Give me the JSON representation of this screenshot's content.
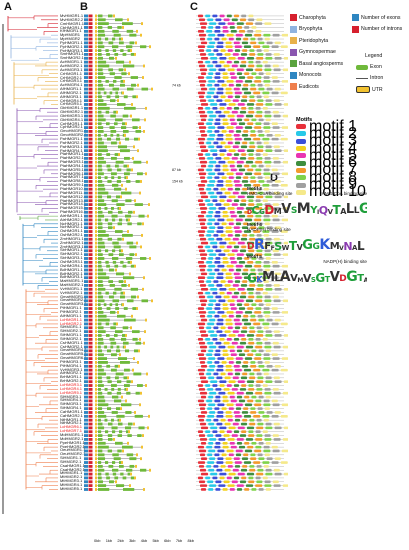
{
  "panels": {
    "a": "A",
    "b": "B",
    "c": "C",
    "d": "D"
  },
  "legend": {
    "groups": [
      {
        "label": "Charophyta",
        "color": "#d6202e"
      },
      {
        "label": "Bryophyta",
        "color": "#8fb3e0"
      },
      {
        "label": "Pteridophyta",
        "color": "#e8b14a"
      },
      {
        "label": "Gymnospermae",
        "color": "#8a56b0"
      },
      {
        "label": "Basal angiosperms",
        "color": "#5aa33f"
      },
      {
        "label": "Monocots",
        "color": "#2e86c1"
      },
      {
        "label": "Eudicots",
        "color": "#ef7f4d"
      }
    ],
    "counts": [
      {
        "label": "Number of exons",
        "color": "#2e86c1"
      },
      {
        "label": "Number of introns",
        "color": "#d6202e"
      }
    ],
    "legend_title": "Legend",
    "structure": [
      {
        "label": "Exon",
        "color": "#6fb93b"
      },
      {
        "label": "Intron",
        "color": "#555555"
      },
      {
        "label": "UTR",
        "color": "#f2c230"
      }
    ]
  },
  "motif_legend": {
    "title": "Motifs",
    "items": [
      {
        "label": "motif 1",
        "color": "#e8303a"
      },
      {
        "label": "motif 2",
        "color": "#27c9e8"
      },
      {
        "label": "motif 3",
        "color": "#3b4fd8"
      },
      {
        "label": "motif 4",
        "color": "#f3d21f"
      },
      {
        "label": "motif 5",
        "color": "#e934b2"
      },
      {
        "label": "motif 6",
        "color": "#3e8e3e"
      },
      {
        "label": "motif 7",
        "color": "#f39a2c"
      },
      {
        "label": "motif 8",
        "color": "#7fd34b"
      },
      {
        "label": "motif 9",
        "color": "#a0a0a0"
      },
      {
        "label": "motif 10",
        "color": "#f5e98a"
      }
    ]
  },
  "logos": [
    {
      "title": "Motif 3",
      "site1": "HMG-CoA binding site",
      "site2": "HMG-CoA binding site",
      "seq": "DCGDMVSMYIQVTALLGGIQKNATTLGLSMTVRGPSAL"
    },
    {
      "title": "Motif 4",
      "site1": "NADP(H) binding site",
      "site2": "",
      "seq": "DRFFSWTVGGKMVNAL"
    },
    {
      "title": "Motif 5",
      "site1": "",
      "site2": "NADP(H) binding site",
      "seq": "GKMLAVMVSGTVDGTAAMGVNAGVHSAGGTLLAVGKAGAS"
    }
  ],
  "axis": {
    "ticks": [
      "0kb",
      "1kb",
      "2kb",
      "3kb",
      "4kb",
      "5kb",
      "6kb",
      "7kb",
      "8kb"
    ]
  },
  "structure_notes": [
    "74 kb",
    "87 kb",
    "154 kb"
  ],
  "genes": [
    {
      "name": "MvHMGR1.1",
      "hl": false
    },
    {
      "name": "MvHMGR2.2",
      "hl": false
    },
    {
      "name": "CmHMGR1.1",
      "hl": false
    },
    {
      "name": "CbHMGR1.1",
      "hl": false
    },
    {
      "name": "KfHMGR1.1",
      "hl": false
    },
    {
      "name": "MpHMGR1",
      "hl": false
    },
    {
      "name": "MpHMGR2",
      "hl": false
    },
    {
      "name": "PpHMGR1.1",
      "hl": false
    },
    {
      "name": "PpHMGR2.1",
      "hl": false
    },
    {
      "name": "PpHMGR3.1",
      "hl": false
    },
    {
      "name": "SmHMGR1.1",
      "hl": false
    },
    {
      "name": "SmHMGR2.1",
      "hl": false
    },
    {
      "name": "AcHMGR1.1",
      "hl": false
    },
    {
      "name": "AcHMGR2.1",
      "hl": false
    },
    {
      "name": "AcHMGR3.1",
      "hl": false
    },
    {
      "name": "CrHMGR1.1",
      "hl": false
    },
    {
      "name": "CrHMGR2.1",
      "hl": false
    },
    {
      "name": "CrHMGR3.1",
      "hl": false
    },
    {
      "name": "AcHMGR4.1",
      "hl": false
    },
    {
      "name": "AfHMGR1.1",
      "hl": false
    },
    {
      "name": "AfHMGR2.1",
      "hl": false
    },
    {
      "name": "AfHMGR3.1",
      "hl": false
    },
    {
      "name": "CrHMGR4.1",
      "hl": false
    },
    {
      "name": "CrHMGR5.1",
      "hl": false
    },
    {
      "name": "GbHMGR1.1",
      "hl": false
    },
    {
      "name": "GbHMGR2.1",
      "hl": false
    },
    {
      "name": "GbHMGR3.1",
      "hl": false
    },
    {
      "name": "GbHMGR4.1",
      "hl": false
    },
    {
      "name": "CpHMGR1.1",
      "hl": false
    },
    {
      "name": "CpHMGR2.1",
      "hl": false
    },
    {
      "name": "GmoHMGR1.1",
      "hl": false
    },
    {
      "name": "GmoHMGR2.1",
      "hl": false
    },
    {
      "name": "PaHMGR1.1",
      "hl": false
    },
    {
      "name": "PaHMGR2.1",
      "hl": false
    },
    {
      "name": "PaHMGR3.1",
      "hl": false
    },
    {
      "name": "PaHMGR4.1",
      "hl": false
    },
    {
      "name": "PtaHMGR1.1",
      "hl": false
    },
    {
      "name": "PtaHMGR2.1",
      "hl": false
    },
    {
      "name": "PtaHMGR3.1",
      "hl": false
    },
    {
      "name": "PtaHMGR4.1",
      "hl": false
    },
    {
      "name": "PtaHMGR5.1",
      "hl": false
    },
    {
      "name": "PtaHMGR6.1",
      "hl": false
    },
    {
      "name": "PtaHMGR7.1",
      "hl": false
    },
    {
      "name": "PtaHMGR8.1",
      "hl": false
    },
    {
      "name": "PtaHMGR9.1",
      "hl": false
    },
    {
      "name": "PtaHMGR10.1",
      "hl": false
    },
    {
      "name": "PtaHMGR11.1",
      "hl": false
    },
    {
      "name": "PtaHMGR12.1",
      "hl": false
    },
    {
      "name": "PtaHMGR13.1",
      "hl": false
    },
    {
      "name": "PtaHMGR14.1",
      "hl": false
    },
    {
      "name": "PtaHMGR15.1",
      "hl": false
    },
    {
      "name": "PtaHMGR16.1",
      "hl": false
    },
    {
      "name": "AtrHMGR1.1",
      "hl": false
    },
    {
      "name": "AtrHMGR2.1",
      "hl": false
    },
    {
      "name": "NcHMGR1.1",
      "hl": false
    },
    {
      "name": "NcHMGR2.1",
      "hl": false
    },
    {
      "name": "OsHMGR1.1",
      "hl": false
    },
    {
      "name": "OsHMGR2.1",
      "hl": false
    },
    {
      "name": "ZmHMGR1.1",
      "hl": false
    },
    {
      "name": "ZmHMGR2.1",
      "hl": false
    },
    {
      "name": "ZmHMGR3.1",
      "hl": false
    },
    {
      "name": "SbHMGR1.1",
      "hl": false
    },
    {
      "name": "SbHMGR2.1",
      "hl": false
    },
    {
      "name": "SbHMGR3.1",
      "hl": false
    },
    {
      "name": "OsHMGR3.1",
      "hl": false
    },
    {
      "name": "OsHMGR4.1",
      "hl": false
    },
    {
      "name": "BdHMGR1.1",
      "hl": false
    },
    {
      "name": "BdHMGR2.1",
      "hl": false
    },
    {
      "name": "BdHMGR3.1",
      "hl": false
    },
    {
      "name": "MaHMGR1.1",
      "hl": false
    },
    {
      "name": "MaHMGR2.1",
      "hl": false
    },
    {
      "name": "VvHMGR1.1",
      "hl": false
    },
    {
      "name": "VvHMGR2.1",
      "hl": false
    },
    {
      "name": "GmaHMGR1.1",
      "hl": false
    },
    {
      "name": "GmaHMGR2.1",
      "hl": false
    },
    {
      "name": "GmaHMGR3.1",
      "hl": false
    },
    {
      "name": "PtHMGR1.1",
      "hl": false
    },
    {
      "name": "PtHMGR2.1",
      "hl": false
    },
    {
      "name": "AtHMGR1.1",
      "hl": false
    },
    {
      "name": "LcHMGR1.1",
      "hl": true
    },
    {
      "name": "LcHMGR2.1",
      "hl": true
    },
    {
      "name": "SlHMGR1.1",
      "hl": false
    },
    {
      "name": "SlHMGR2.1",
      "hl": false
    },
    {
      "name": "StHMGR1.1",
      "hl": false
    },
    {
      "name": "StHMGR2.1",
      "hl": false
    },
    {
      "name": "CsHMGR1.1",
      "hl": false
    },
    {
      "name": "CsHMGR2.1",
      "hl": false
    },
    {
      "name": "GmaHMGR4.1",
      "hl": false
    },
    {
      "name": "GmaHMGR5.1",
      "hl": false
    },
    {
      "name": "GmaHMGR6.1",
      "hl": false
    },
    {
      "name": "PtHMGR3.1",
      "hl": false
    },
    {
      "name": "PtHMGR4.1",
      "hl": false
    },
    {
      "name": "VvHMGR3.1",
      "hl": false
    },
    {
      "name": "AtHMGR2.1",
      "hl": false
    },
    {
      "name": "BrHMGR1.1",
      "hl": false
    },
    {
      "name": "BrHMGR2.1",
      "hl": false
    },
    {
      "name": "LcHMGR3.1",
      "hl": true
    },
    {
      "name": "LcHMGR4.1",
      "hl": true
    },
    {
      "name": "LcHMGR5.1",
      "hl": true
    },
    {
      "name": "SlHMGR3.1",
      "hl": false
    },
    {
      "name": "SlHMGR4.1",
      "hl": false
    },
    {
      "name": "StHMGR3.1",
      "hl": false
    },
    {
      "name": "StHMGR4.1",
      "hl": false
    },
    {
      "name": "CaHMGR1.1",
      "hl": false
    },
    {
      "name": "CaHMGR2.1",
      "hl": false
    },
    {
      "name": "NtHMGR1.1",
      "hl": false
    },
    {
      "name": "NtHMGR2.1",
      "hl": false
    },
    {
      "name": "LcHMGR6.1",
      "hl": true
    },
    {
      "name": "LcHMGR7.1",
      "hl": true
    },
    {
      "name": "MdHMGR1.1",
      "hl": false
    },
    {
      "name": "MdHMGR2.1",
      "hl": false
    },
    {
      "name": "PpeHMGR1.1",
      "hl": false
    },
    {
      "name": "PpeHMGR2.1",
      "hl": false
    },
    {
      "name": "OeuHMGR1.1",
      "hl": false
    },
    {
      "name": "OeuHMGR2.1",
      "hl": false
    },
    {
      "name": "SiHMGR1.1",
      "hl": false
    },
    {
      "name": "SiHMGR2.1",
      "hl": false
    },
    {
      "name": "CsaHMGR1.1",
      "hl": false
    },
    {
      "name": "CsaHMGR2.1",
      "hl": false
    },
    {
      "name": "MtHMGR1.1",
      "hl": false
    },
    {
      "name": "MtHMGR2.1",
      "hl": false
    },
    {
      "name": "MtHMGR3.1",
      "hl": false
    },
    {
      "name": "MtHMGR4.1",
      "hl": false
    },
    {
      "name": "MtHMGR5.1",
      "hl": false
    }
  ]
}
